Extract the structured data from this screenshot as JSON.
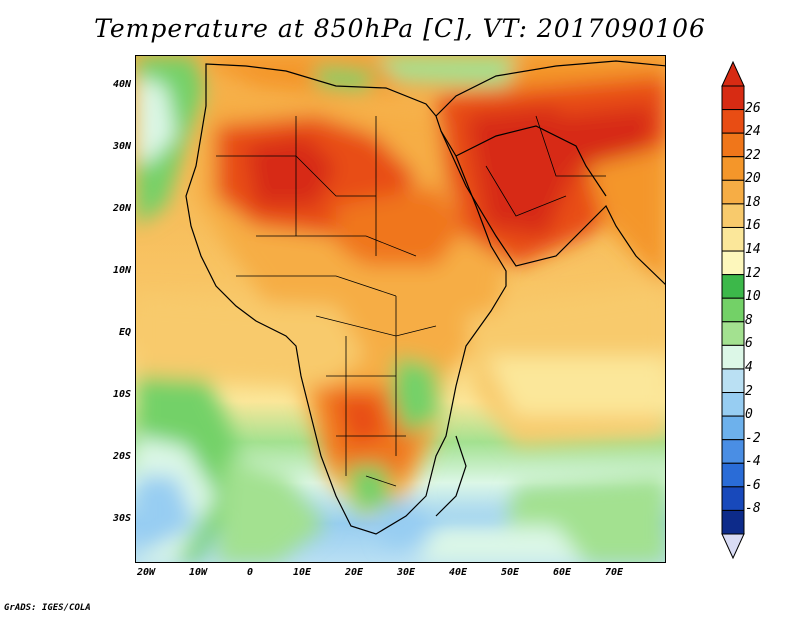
{
  "title": "Temperature at 850hPa [C], VT: 2017090106",
  "credit": "GrADS: IGES/COLA",
  "axes": {
    "lat_labels": [
      "40N",
      "30N",
      "20N",
      "10N",
      "EQ",
      "10S",
      "20S",
      "30S"
    ],
    "lat_values": [
      40,
      30,
      20,
      10,
      0,
      -10,
      -20,
      -30
    ],
    "lon_labels": [
      "20W",
      "10W",
      "0",
      "10E",
      "20E",
      "30E",
      "40E",
      "50E",
      "60E",
      "70E"
    ],
    "lon_values": [
      -20,
      -10,
      0,
      10,
      20,
      30,
      40,
      50,
      60,
      70
    ],
    "lon_range": [
      -22,
      80
    ],
    "lat_range": [
      -36,
      45
    ]
  },
  "colorbar": {
    "labels": [
      "26",
      "24",
      "22",
      "20",
      "18",
      "16",
      "14",
      "12",
      "10",
      "8",
      "6",
      "4",
      "2",
      "0",
      "-2",
      "-4",
      "-6",
      "-8"
    ],
    "colors": [
      "#d72b13",
      "#e84d14",
      "#f0761a",
      "#f4962a",
      "#f6ad45",
      "#f8ca6c",
      "#fbe79a",
      "#fdf7bc",
      "#3cb84a",
      "#73d167",
      "#a3e190",
      "#dcf7e7",
      "#bae0f3",
      "#97cdf2",
      "#6db1ec",
      "#4a8ee4",
      "#2a6cd7",
      "#1849bb",
      "#0d2b8a"
    ],
    "top_arrow_color": "#d72b13",
    "bottom_arrow_color": "#d9dcf5"
  },
  "colors": {
    "ocean_north": "#fbe79a",
    "ocean_south": "#97cdf2",
    "hot_core": "#d72b13"
  }
}
